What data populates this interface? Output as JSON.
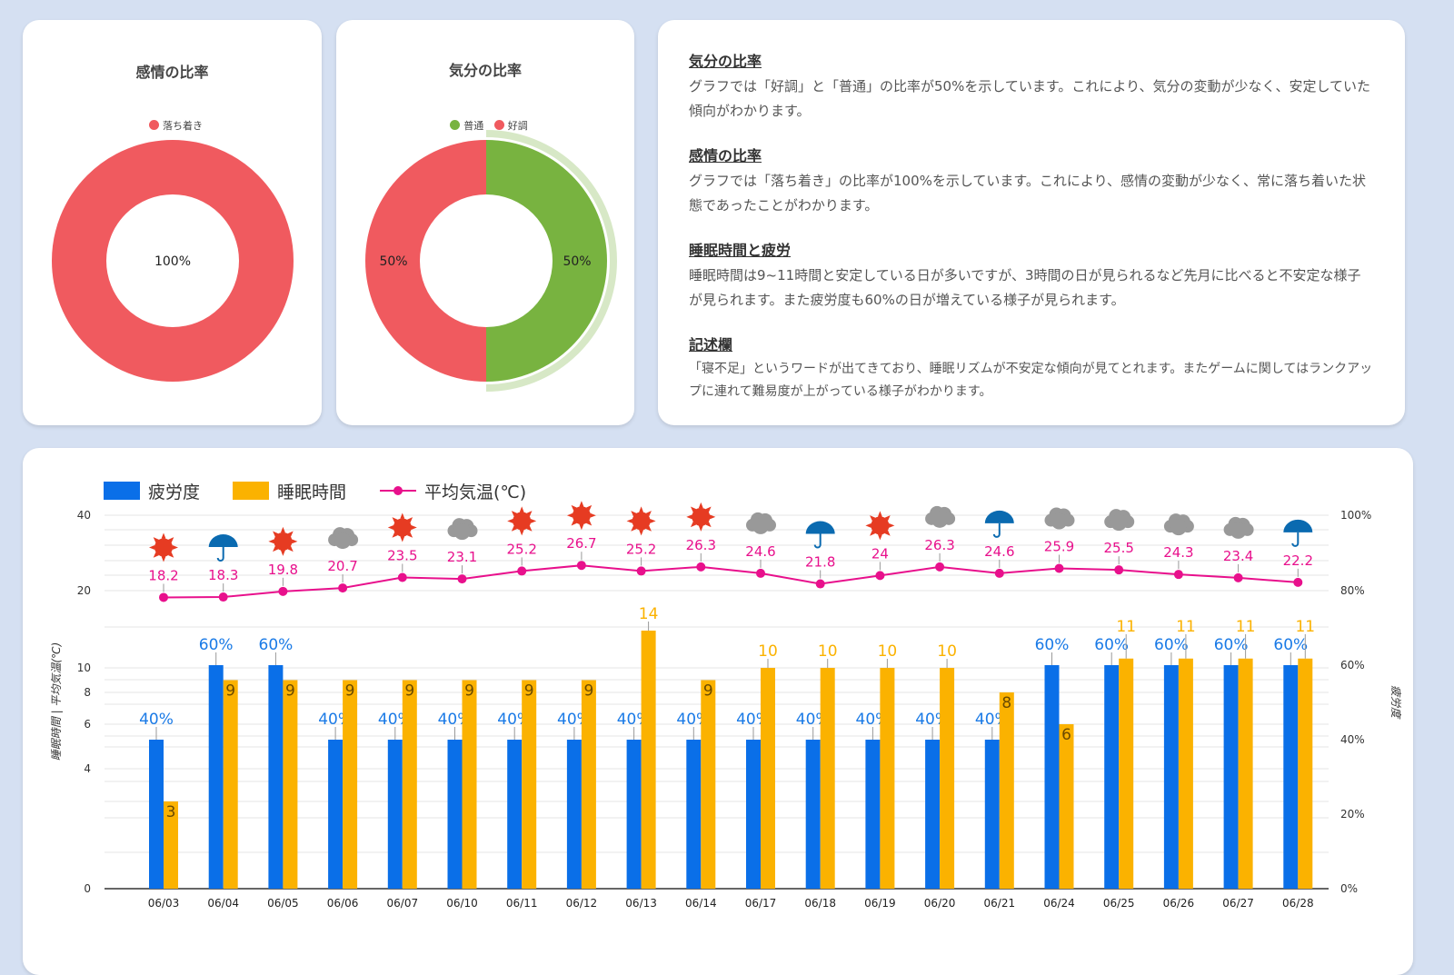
{
  "emotion_panel": {
    "title": "感情の比率",
    "legend": [
      {
        "label": "落ち着き",
        "color": "#f05a5f"
      }
    ],
    "slices": [
      {
        "label": "落ち着き",
        "value": 100,
        "text": "100%",
        "color": "#f05a5f"
      }
    ]
  },
  "mood_panel": {
    "title": "気分の比率",
    "legend": [
      {
        "label": "普通",
        "color": "#78b340"
      },
      {
        "label": "好調",
        "color": "#f05a5f"
      }
    ],
    "slices": [
      {
        "label": "普通",
        "value": 50,
        "text": "50%",
        "color": "#78b340"
      },
      {
        "label": "好調",
        "value": 50,
        "text": "50%",
        "color": "#f05a5f"
      }
    ]
  },
  "summary": [
    {
      "heading": "気分の比率",
      "body": "グラフでは「好調」と「普通」の比率が50%を示しています。これにより、気分の変動が少なく、安定していた傾向がわかります。"
    },
    {
      "heading": "感情の比率",
      "body": "グラフでは「落ち着き」の比率が100%を示しています。これにより、感情の変動が少なく、常に落ち着いた状態であったことがわかります。"
    },
    {
      "heading": "睡眠時間と疲労",
      "body": "睡眠時間は9~11時間と安定している日が多いですが、3時間の日が見られるなど先月に比べると不安定な様子が見られます。また疲労度も60%の日が増えている様子が見られます。"
    },
    {
      "heading": "記述欄",
      "body": "「寝不足」というワードが出てきており、睡眠リズムが不安定な傾向が見てとれます。またゲームに関してはランクアップに連れて難易度が上がっている様子がわかります。"
    }
  ],
  "chart_data": {
    "type": "bar",
    "categories": [
      "06/03",
      "06/04",
      "06/05",
      "06/06",
      "06/07",
      "06/10",
      "06/11",
      "06/12",
      "06/13",
      "06/14",
      "06/17",
      "06/18",
      "06/19",
      "06/20",
      "06/21",
      "06/24",
      "06/25",
      "06/26",
      "06/27",
      "06/28"
    ],
    "series": [
      {
        "name": "疲労度",
        "type": "bar",
        "axis": "right",
        "color": "#0a6fe8",
        "values": [
          40,
          60,
          60,
          40,
          40,
          40,
          40,
          40,
          40,
          40,
          40,
          40,
          40,
          40,
          40,
          60,
          60,
          60,
          60,
          60
        ],
        "labels": [
          "40%",
          "60%",
          "60%",
          "40%",
          "40%",
          "40%",
          "40%",
          "40%",
          "40%",
          "40%",
          "40%",
          "40%",
          "40%",
          "40%",
          "40%",
          "60%",
          "60%",
          "60%",
          "60%",
          "60%"
        ]
      },
      {
        "name": "睡眠時間",
        "type": "bar",
        "axis": "left",
        "color": "#fbb200",
        "values": [
          3,
          9,
          9,
          9,
          9,
          9,
          9,
          9,
          14,
          9,
          10,
          10,
          10,
          10,
          8,
          6,
          11,
          11,
          11,
          11
        ]
      },
      {
        "name": "平均気温(℃)",
        "type": "line",
        "axis": "left",
        "color": "#e8108c",
        "values": [
          18.2,
          18.3,
          19.8,
          20.7,
          23.5,
          23.1,
          25.2,
          26.7,
          25.2,
          26.3,
          24.6,
          21.8,
          24,
          26.3,
          24.6,
          25.9,
          25.5,
          24.3,
          23.4,
          22.2
        ]
      }
    ],
    "weather_icons": [
      "sun",
      "umbrella",
      "sun",
      "cloud",
      "sun",
      "cloud",
      "sun",
      "sun",
      "sun",
      "sun",
      "cloud",
      "umbrella",
      "sun",
      "cloud",
      "umbrella",
      "cloud",
      "cloud",
      "cloud",
      "cloud",
      "umbrella"
    ],
    "ylabel_left": "睡眠時間 | 平均気温(℃)",
    "ylabel_right": "疲労度",
    "left_ticks": [
      "0",
      "4",
      "6",
      "8",
      "10",
      "20",
      "40"
    ],
    "right_ticks": [
      "0%",
      "20%",
      "40%",
      "60%",
      "80%",
      "100%"
    ],
    "grid": true,
    "legend_position": "top-left"
  }
}
